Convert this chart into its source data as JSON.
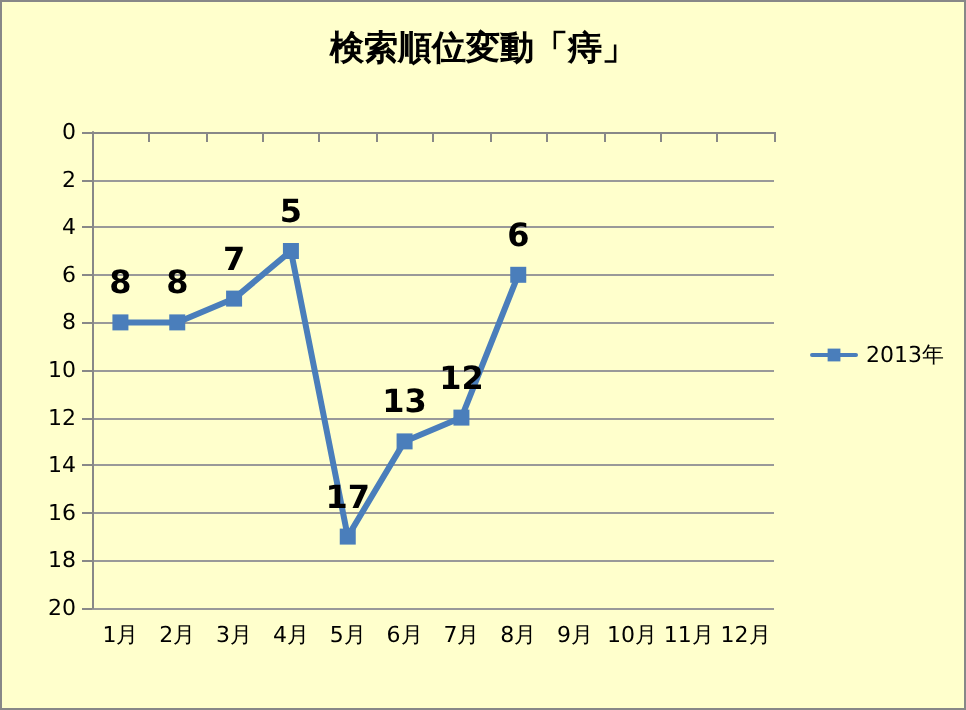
{
  "chart_data": {
    "type": "line",
    "title": "検索順位変動「痔」",
    "categories": [
      "1月",
      "2月",
      "3月",
      "4月",
      "5月",
      "6月",
      "7月",
      "8月",
      "9月",
      "10月",
      "11月",
      "12月"
    ],
    "series": [
      {
        "name": "2013年",
        "color": "#4a7ebb",
        "values": [
          8,
          8,
          7,
          5,
          17,
          13,
          12,
          6,
          null,
          null,
          null,
          null
        ]
      }
    ],
    "ylim": [
      20,
      0
    ],
    "yticks": [
      0,
      2,
      4,
      6,
      8,
      10,
      12,
      14,
      16,
      18,
      20
    ],
    "grid": "y",
    "legend": "right",
    "marker": "square",
    "line_style": "solid",
    "data_labels": true
  }
}
